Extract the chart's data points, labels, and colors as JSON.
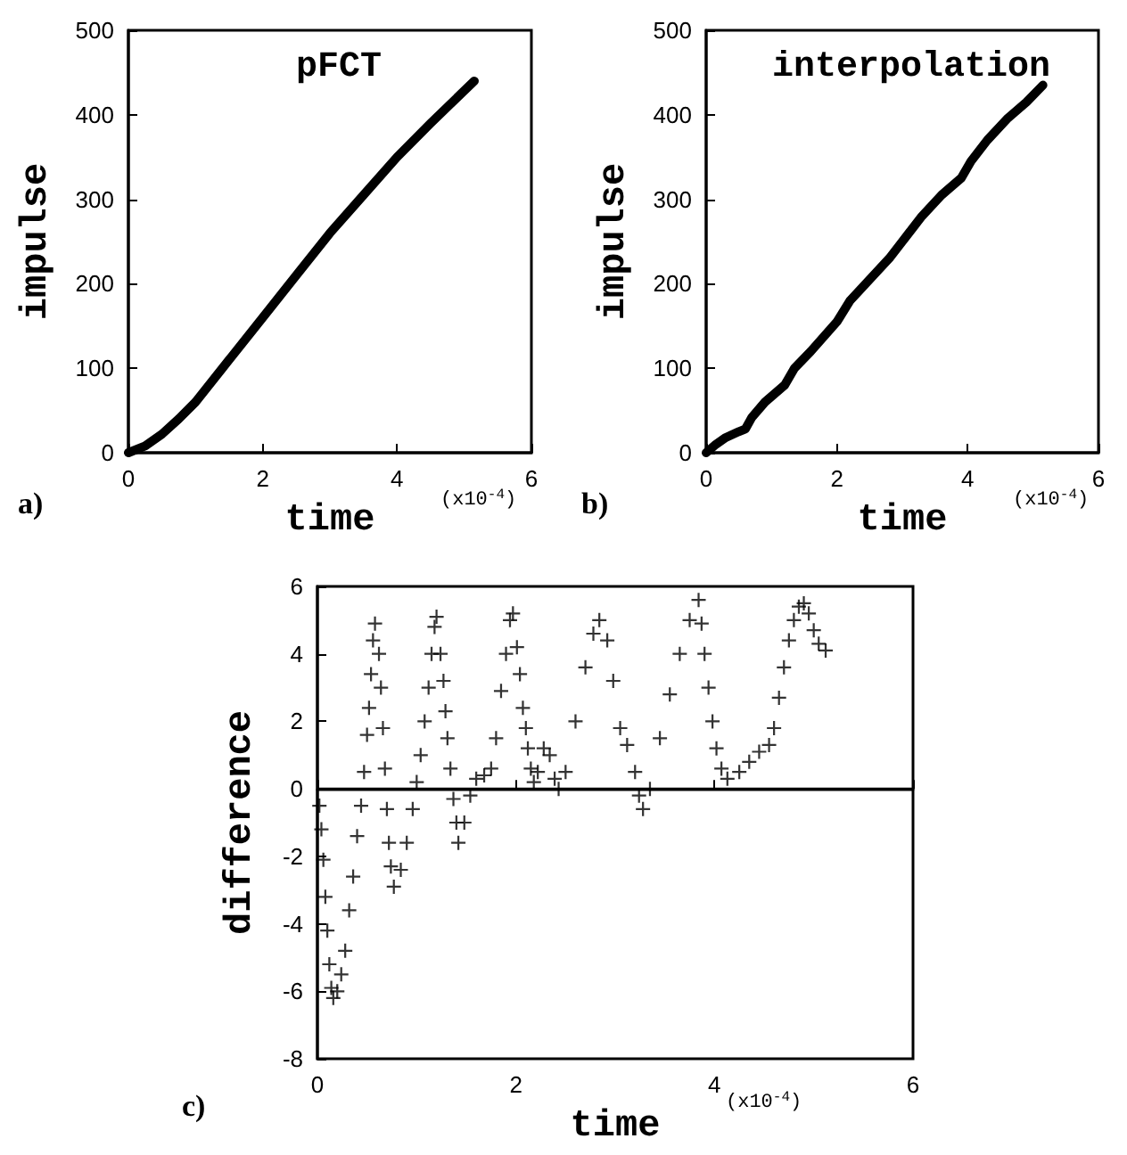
{
  "chart_data": [
    {
      "type": "line",
      "title": "pFCT",
      "xlabel": "time",
      "ylabel": "impulse",
      "annotations": [
        "a)",
        "(x10$^{-4}$)"
      ],
      "color": "#000000",
      "line_style": "solid",
      "marker": "none",
      "grid": false,
      "xlim": [
        0,
        6
      ],
      "xticks": [
        0,
        2,
        4,
        6
      ],
      "ylim": [
        0,
        500
      ],
      "yticks": [
        0,
        100,
        200,
        300,
        400,
        500
      ],
      "x": [
        0,
        0.25,
        0.5,
        0.75,
        1,
        1.5,
        2,
        2.5,
        3,
        3.5,
        4,
        4.5,
        5.15
      ],
      "values": [
        0,
        8,
        22,
        40,
        60,
        110,
        160,
        210,
        260,
        305,
        350,
        390,
        440
      ]
    },
    {
      "type": "line",
      "title": "interpolation",
      "xlabel": "time",
      "ylabel": "impulse",
      "annotations": [
        "b)",
        "(x10$^{-4}$)"
      ],
      "color": "#000000",
      "line_style": "solid",
      "marker": "none",
      "grid": false,
      "xlim": [
        0,
        6
      ],
      "xticks": [
        0,
        2,
        4,
        6
      ],
      "ylim": [
        0,
        500
      ],
      "yticks": [
        0,
        100,
        200,
        300,
        400,
        500
      ],
      "x": [
        0,
        0.15,
        0.3,
        0.5,
        0.6,
        0.7,
        0.9,
        1.2,
        1.35,
        1.6,
        2,
        2.2,
        2.5,
        2.8,
        3,
        3.3,
        3.6,
        3.9,
        4.05,
        4.3,
        4.6,
        4.9,
        5.15
      ],
      "values": [
        0,
        10,
        18,
        25,
        28,
        42,
        60,
        80,
        100,
        120,
        155,
        180,
        205,
        230,
        250,
        280,
        305,
        325,
        345,
        370,
        395,
        415,
        435
      ]
    },
    {
      "type": "scatter",
      "xlabel": "time",
      "ylabel": "difference",
      "annotations": [
        "c)",
        "(x10$^{-4}$)"
      ],
      "color": "#000000",
      "marker": "cross",
      "grid": false,
      "xlim": [
        0,
        6
      ],
      "xticks": [
        0,
        2,
        4,
        6
      ],
      "ylim": [
        -8,
        6
      ],
      "yticks": [
        -8,
        -6,
        -4,
        -2,
        0,
        2,
        4,
        6
      ],
      "ref_lines": [
        {
          "axis": "y",
          "value": 0,
          "color": "#000000",
          "line_style": "solid"
        }
      ],
      "x": [
        0.02,
        0.04,
        0.06,
        0.08,
        0.1,
        0.12,
        0.14,
        0.16,
        0.2,
        0.24,
        0.28,
        0.32,
        0.36,
        0.4,
        0.44,
        0.47,
        0.5,
        0.52,
        0.54,
        0.56,
        0.58,
        0.62,
        0.64,
        0.66,
        0.68,
        0.7,
        0.72,
        0.74,
        0.77,
        0.84,
        0.9,
        0.96,
        1.0,
        1.04,
        1.08,
        1.12,
        1.15,
        1.18,
        1.2,
        1.24,
        1.27,
        1.29,
        1.31,
        1.34,
        1.37,
        1.4,
        1.42,
        1.48,
        1.54,
        1.6,
        1.68,
        1.75,
        1.8,
        1.85,
        1.9,
        1.94,
        1.97,
        2.01,
        2.04,
        2.07,
        2.1,
        2.12,
        2.15,
        2.18,
        2.22,
        2.28,
        2.34,
        2.39,
        2.43,
        2.5,
        2.6,
        2.7,
        2.78,
        2.84,
        2.92,
        2.98,
        3.05,
        3.12,
        3.2,
        3.24,
        3.28,
        3.35,
        3.45,
        3.55,
        3.65,
        3.75,
        3.84,
        3.87,
        3.9,
        3.94,
        3.98,
        4.02,
        4.07,
        4.13,
        4.25,
        4.35,
        4.45,
        4.55,
        4.6,
        4.65,
        4.7,
        4.75,
        4.8,
        4.85,
        4.9,
        4.95,
        5.0,
        5.05,
        5.12
      ],
      "values": [
        -0.5,
        -1.2,
        -2.1,
        -3.2,
        -4.2,
        -5.2,
        -5.9,
        -6.2,
        -6.0,
        -5.5,
        -4.8,
        -3.6,
        -2.6,
        -1.4,
        -0.5,
        0.5,
        1.6,
        2.4,
        3.4,
        4.4,
        4.9,
        4.0,
        3.0,
        1.8,
        0.6,
        -0.6,
        -1.6,
        -2.3,
        -2.9,
        -2.4,
        -1.6,
        -0.6,
        0.2,
        1.0,
        2.0,
        3.0,
        4.0,
        4.8,
        5.1,
        4.0,
        3.2,
        2.3,
        1.5,
        0.6,
        -0.3,
        -1.0,
        -1.6,
        -1.0,
        -0.2,
        0.3,
        0.4,
        0.6,
        1.5,
        2.9,
        4.0,
        5.0,
        5.2,
        4.2,
        3.4,
        2.4,
        1.8,
        1.2,
        0.6,
        0.2,
        0.5,
        1.2,
        1.0,
        0.3,
        0.0,
        0.5,
        2.0,
        3.6,
        4.6,
        5.0,
        4.4,
        3.2,
        1.8,
        1.3,
        0.5,
        -0.2,
        -0.6,
        0.0,
        1.5,
        2.8,
        4.0,
        5.0,
        5.6,
        4.9,
        4.0,
        3.0,
        2.0,
        1.2,
        0.6,
        0.3,
        0.5,
        0.8,
        1.1,
        1.3,
        1.8,
        2.7,
        3.6,
        4.4,
        5.0,
        5.4,
        5.5,
        5.2,
        4.7,
        4.3,
        4.1
      ]
    }
  ]
}
